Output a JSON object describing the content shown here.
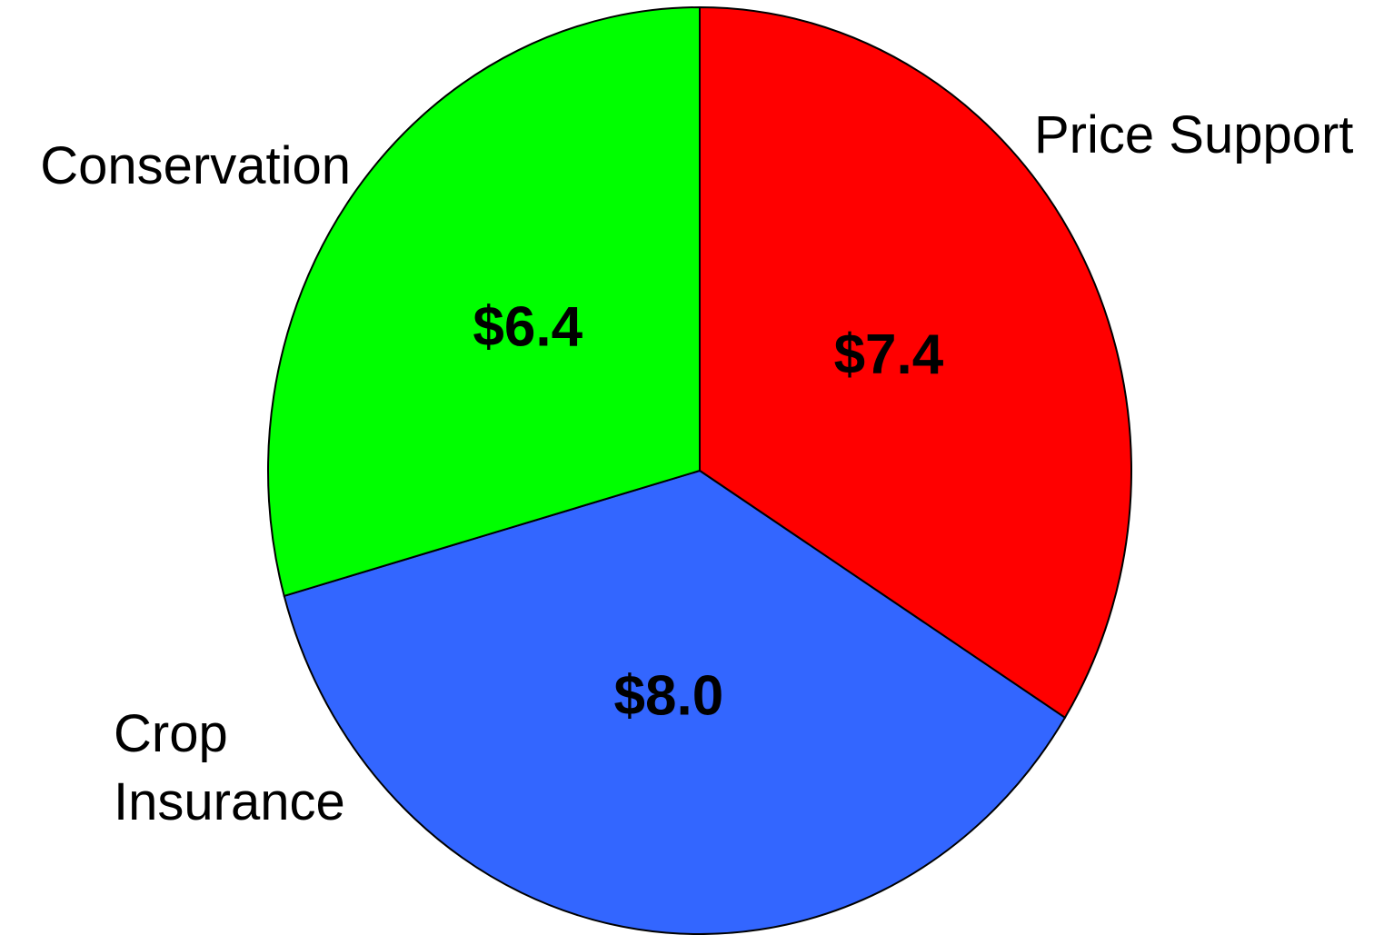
{
  "chart_data": {
    "type": "pie",
    "categories": [
      "Price Support",
      "Crop\nInsurance",
      "Conservation"
    ],
    "values": [
      7.4,
      8.0,
      6.4
    ],
    "value_labels": [
      "$7.4",
      "$8.0",
      "$6.4"
    ],
    "colors": [
      "#ff0000",
      "#3366ff",
      "#00ff00"
    ]
  }
}
